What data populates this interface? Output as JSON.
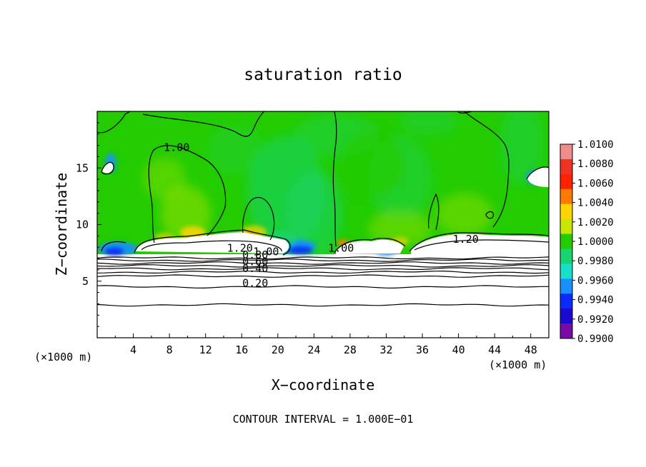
{
  "chart_data": {
    "type": "heatmap",
    "title": "saturation ratio",
    "xlabel": "X−coordinate",
    "ylabel": "Z−coordinate",
    "x_unit": "(×1000 m)",
    "x_unit_right": "(×1000 m)",
    "xlim": [
      0,
      50
    ],
    "ylim": [
      0,
      20
    ],
    "x_ticks": [
      "4",
      "8",
      "12",
      "16",
      "20",
      "24",
      "28",
      "32",
      "36",
      "40",
      "44",
      "48"
    ],
    "y_ticks": [
      "5",
      "10",
      "15"
    ],
    "footer": "CONTOUR INTERVAL = 1.000E−01",
    "colorbar": {
      "labels": [
        "1.0100",
        "1.0080",
        "1.0060",
        "1.0040",
        "1.0020",
        "1.0000",
        "0.9980",
        "0.9960",
        "0.9940",
        "0.9920",
        "0.9900"
      ],
      "colors": [
        "#f08c8c",
        "#ee3322",
        "#ff2200",
        "#ff7a00",
        "#ffd400",
        "#c8e600",
        "#22cc00",
        "#17d470",
        "#16e0c8",
        "#1890ff",
        "#0a2bff",
        "#1a0ad0",
        "#7a0aa8"
      ]
    },
    "contour_labels": [
      {
        "text": "1.00",
        "x": 8.8,
        "z": 16.5
      },
      {
        "text": "1.20",
        "x": 15.8,
        "z": 7.6
      },
      {
        "text": "1.00",
        "x": 18.7,
        "z": 7.3
      },
      {
        "text": "0.80",
        "x": 17.5,
        "z": 7.0
      },
      {
        "text": "0.60",
        "x": 17.5,
        "z": 6.4
      },
      {
        "text": "0.40",
        "x": 17.5,
        "z": 5.8
      },
      {
        "text": "0.20",
        "x": 17.5,
        "z": 4.5
      },
      {
        "text": "1.00",
        "x": 27.0,
        "z": 7.6
      },
      {
        "text": "1.20",
        "x": 40.8,
        "z": 8.4
      }
    ],
    "field_colors": {
      "background_green": "#22cc00",
      "cyan": "#17d470",
      "blue": "#1890ff",
      "deep_blue": "#0a2bff",
      "yellow": "#ffd400",
      "orange": "#ff7a00",
      "subsaturated": "#ffffff"
    }
  }
}
